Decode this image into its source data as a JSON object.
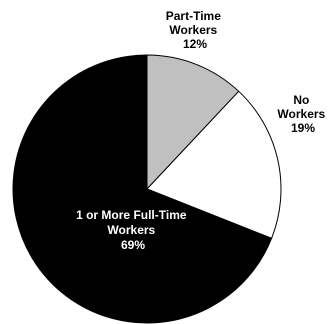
{
  "chart_data": {
    "type": "pie",
    "slices": [
      {
        "name_lines": [
          "Part-Time",
          "Workers"
        ],
        "value": 12,
        "value_label": "12%",
        "color": "#c0c0c0"
      },
      {
        "name_lines": [
          "No",
          "Workers"
        ],
        "value": 19,
        "value_label": "19%",
        "color": "#ffffff"
      },
      {
        "name_lines": [
          "1 or More Full-Time",
          "Workers"
        ],
        "value": 69,
        "value_label": "69%",
        "color": "#000000"
      }
    ],
    "start_angle": "12 o'clock",
    "direction": "clockwise",
    "outline_color": "#000000",
    "legend": "none"
  }
}
